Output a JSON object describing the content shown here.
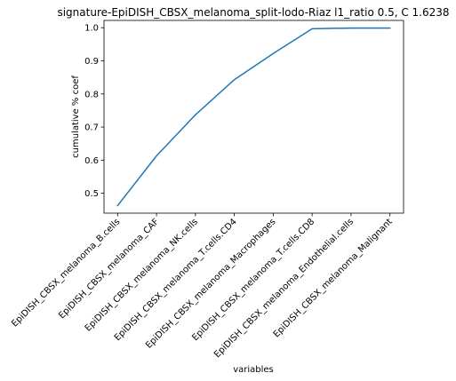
{
  "chart_data": {
    "type": "line",
    "title": "signature-EpiDISH_CBSX_melanoma_split-lodo-Riaz l1_ratio 0.5, C 1.6238",
    "xlabel": "variables",
    "ylabel": "cumulative % coef",
    "categories": [
      "EpiDISH_CBSX_melanoma_B.cells",
      "EpiDISH_CBSX_melanoma_CAF",
      "EpiDISH_CBSX_melanoma_NK.cells",
      "EpiDISH_CBSX_melanoma_T.cells.CD4",
      "EpiDISH_CBSX_melanoma_Macrophages",
      "EpiDISH_CBSX_melanoma_T.cells.CD8",
      "EpiDISH_CBSX_melanoma_Endothelial.cells",
      "EpiDISH_CBSX_melanoma_Malignant"
    ],
    "series": [
      {
        "values": [
          0.463,
          0.613,
          0.737,
          0.843,
          0.922,
          0.997,
          0.999,
          0.999
        ]
      }
    ],
    "ylim": [
      0.44,
      1.022
    ],
    "yticks": [
      "0.5",
      "0.6",
      "0.7",
      "0.8",
      "0.9",
      "1.0"
    ],
    "grid": false,
    "line_color": "#1f77b4"
  }
}
